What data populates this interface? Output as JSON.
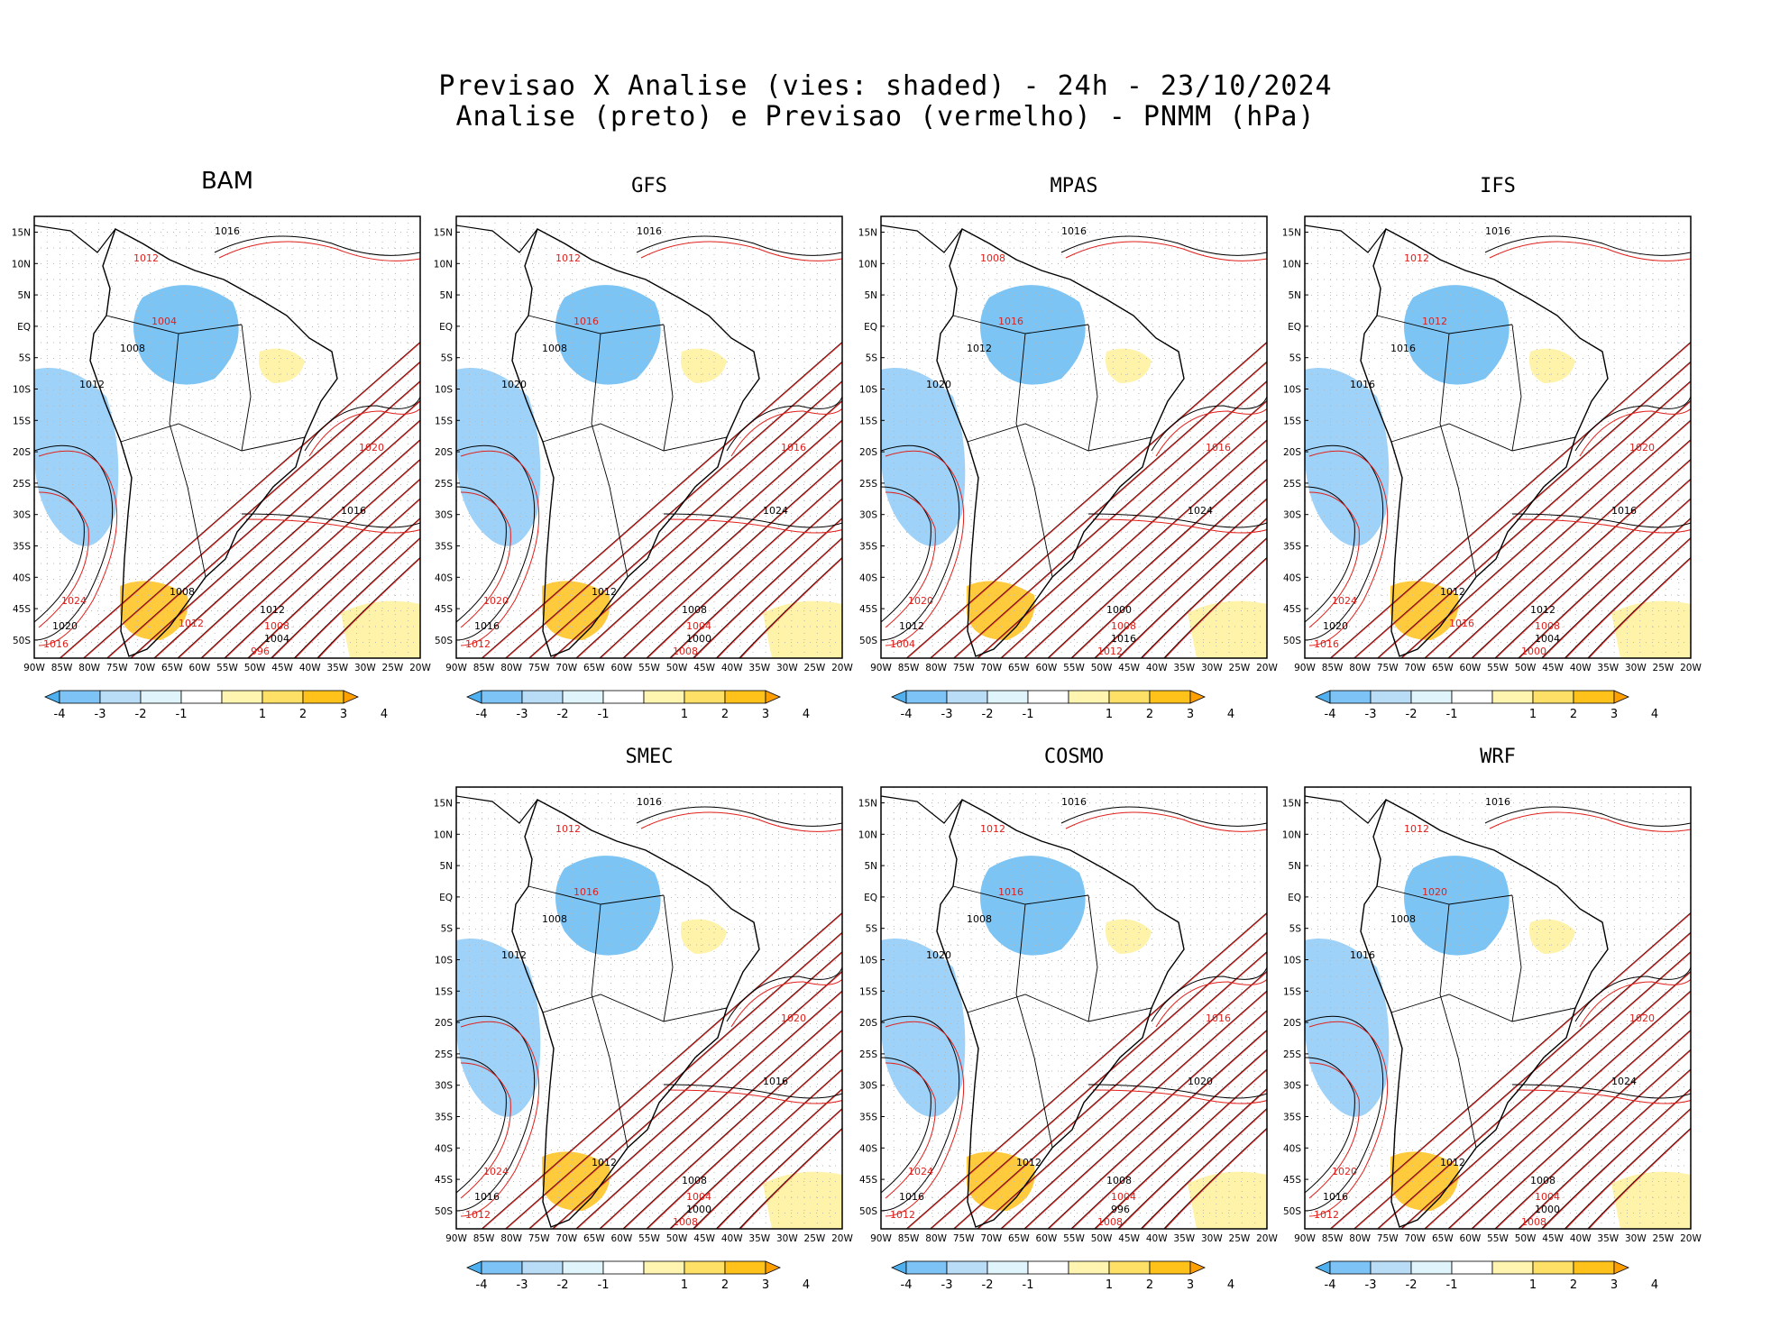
{
  "header": {
    "line1": "Previsao X Analise (vies: shaded) - 24h - 23/10/2024",
    "line2": "Analise (preto) e Previsao (vermelho) - PNMM (hPa)"
  },
  "axes": {
    "lat_labels": [
      "15N",
      "10N",
      "5N",
      "EQ",
      "5S",
      "10S",
      "15S",
      "20S",
      "25S",
      "30S",
      "35S",
      "40S",
      "45S",
      "50S"
    ],
    "lon_labels": [
      "90W",
      "85W",
      "80W",
      "75W",
      "70W",
      "65W",
      "60W",
      "55W",
      "50W",
      "45W",
      "40W",
      "35W",
      "30W",
      "25W",
      "20W"
    ]
  },
  "colorbar": {
    "labels": [
      "-4",
      "-3",
      "-2",
      "-1",
      "1",
      "2",
      "3",
      "4"
    ],
    "colors": [
      "#4fb0f0",
      "#7ec3f5",
      "#b9dcf7",
      "#dff5fb",
      "#ffffff",
      "#fff5b0",
      "#ffe066",
      "#ffc21a",
      "#ffa000"
    ]
  },
  "colors": {
    "analysis": "#000000",
    "forecast": "#e0201c"
  },
  "panels": [
    {
      "name": "BAM",
      "contours": [
        "1016",
        "1012",
        "1008",
        "1004",
        "1012",
        "1020",
        "1016",
        "1024",
        "1020",
        "1016",
        "1012",
        "1008",
        "1004",
        "996",
        "1008",
        "1012"
      ]
    },
    {
      "name": "GFS",
      "contours": [
        "1016",
        "1012",
        "1008",
        "1016",
        "1020",
        "1016",
        "1024",
        "1020",
        "1016",
        "1012",
        "1008",
        "1004",
        "1000",
        "1008",
        "1012"
      ]
    },
    {
      "name": "MPAS",
      "contours": [
        "1016",
        "1008",
        "1012",
        "1016",
        "1020",
        "1016",
        "1024",
        "1020",
        "1012",
        "1004",
        "1000",
        "1008",
        "1016",
        "1012"
      ]
    },
    {
      "name": "IFS",
      "contours": [
        "1016",
        "1012",
        "1016",
        "1012",
        "1016",
        "1020",
        "1016",
        "1024",
        "1020",
        "1016",
        "1012",
        "1008",
        "1004",
        "1000",
        "1012",
        "1016"
      ]
    },
    {
      "name": "SMEC",
      "contours": [
        "1016",
        "1012",
        "1008",
        "1016",
        "1012",
        "1020",
        "1016",
        "1024",
        "1016",
        "1012",
        "1008",
        "1004",
        "1000",
        "1008",
        "1012"
      ]
    },
    {
      "name": "COSMO",
      "contours": [
        "1016",
        "1012",
        "1008",
        "1016",
        "1020",
        "1016",
        "1020",
        "1024",
        "1016",
        "1012",
        "1008",
        "1004",
        "996",
        "1008",
        "1012"
      ]
    },
    {
      "name": "WRF",
      "contours": [
        "1016",
        "1012",
        "1008",
        "1020",
        "1016",
        "1020",
        "1024",
        "1020",
        "1016",
        "1012",
        "1008",
        "1004",
        "1000",
        "1008",
        "1012"
      ]
    }
  ]
}
